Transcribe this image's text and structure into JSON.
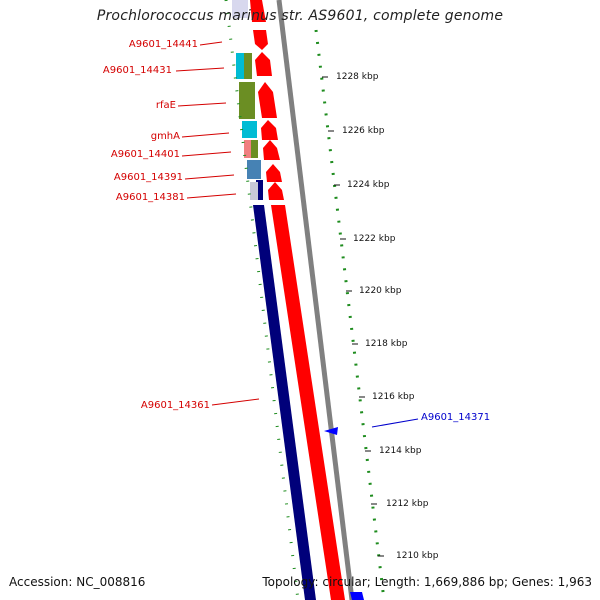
{
  "title": "Prochlorococcus marinus str. AS9601, complete genome",
  "footer": {
    "accession": "Accession: NC_008816",
    "summary": "Topology: circular; Length: 1,669,886 bp; Genes: 1,963"
  },
  "gene_labels": [
    {
      "text": "A9601_14441",
      "color": "#d40000"
    },
    {
      "text": "A9601_14431",
      "color": "#d40000"
    },
    {
      "text": "rfaE",
      "color": "#d40000"
    },
    {
      "text": "gmhA",
      "color": "#d40000"
    },
    {
      "text": "A9601_14401",
      "color": "#d40000"
    },
    {
      "text": "A9601_14391",
      "color": "#d40000"
    },
    {
      "text": "A9601_14381",
      "color": "#d40000"
    },
    {
      "text": "A9601_14361",
      "color": "#d40000"
    },
    {
      "text": "A9601_14371",
      "color": "#0000cc"
    }
  ],
  "scale_ticks": [
    "1228 kbp",
    "1226 kbp",
    "1224 kbp",
    "1222 kbp",
    "1220 kbp",
    "1218 kbp",
    "1216 kbp",
    "1214 kbp",
    "1212 kbp",
    "1210 kbp"
  ],
  "colors": {
    "forward_strand": "#ff0000",
    "reverse_strand": "#00007a",
    "backbone": "#808080",
    "gc_track": "#1e8c1e",
    "cog_olive": "#6b8e23",
    "cog_cyan": "#00bcd4",
    "cog_pink": "#f08080",
    "cog_steel": "#4682b4"
  }
}
